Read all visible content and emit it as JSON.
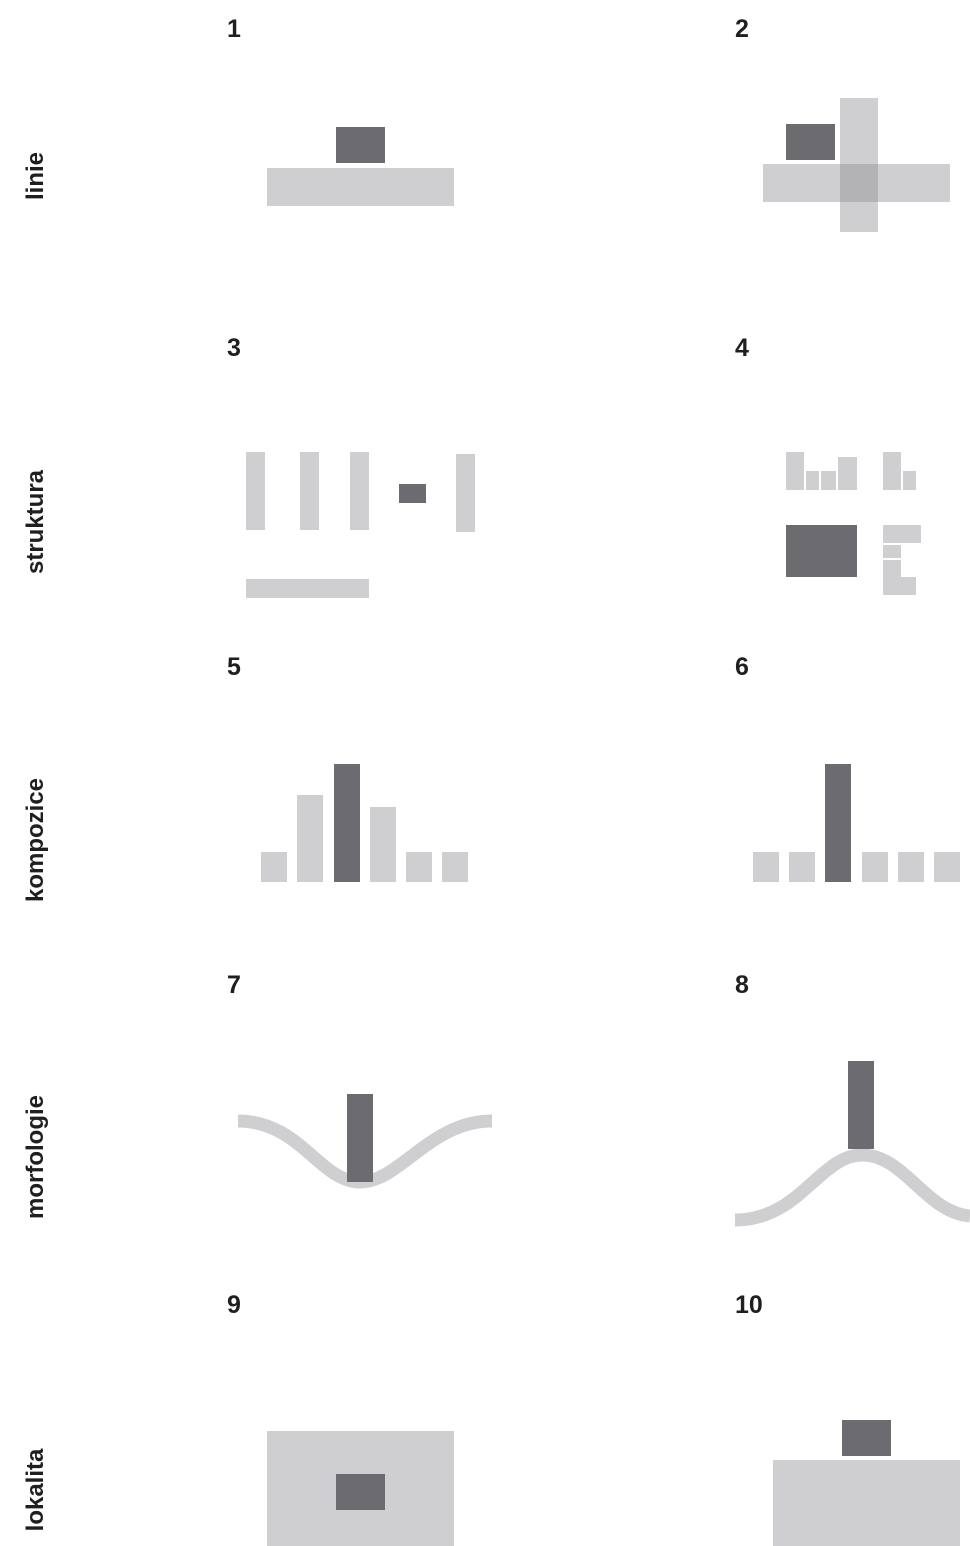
{
  "rows": [
    {
      "label": "linie"
    },
    {
      "label": "struktura"
    },
    {
      "label": "kompozice"
    },
    {
      "label": "morfologie"
    },
    {
      "label": "lokalita"
    }
  ],
  "panels": [
    {
      "number": "1"
    },
    {
      "number": "2"
    },
    {
      "number": "3"
    },
    {
      "number": "4"
    },
    {
      "number": "5"
    },
    {
      "number": "6"
    },
    {
      "number": "7"
    },
    {
      "number": "8"
    },
    {
      "number": "9"
    },
    {
      "number": "10"
    }
  ],
  "colors": {
    "light": "#cfcfd1",
    "dark": "#6b6b70",
    "overlap": "#b3b3b6"
  }
}
